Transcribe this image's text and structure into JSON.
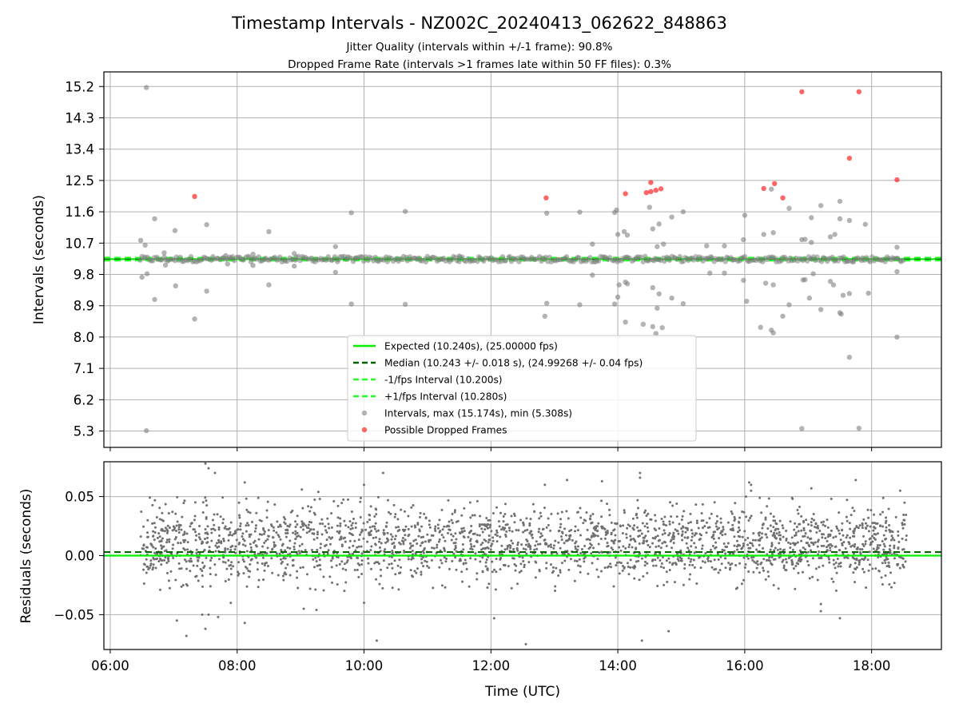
{
  "figure": {
    "title": "Timestamp Intervals - NZ002C_20240413_062622_848863",
    "subtitle_1": "Jitter Quality (intervals within +/-1 frame): 90.8%",
    "subtitle_2": "Dropped Frame Rate (intervals >1 frames late within 50 FF files): 0.3%"
  },
  "colors": {
    "expected": "#00ee00",
    "median": "#006400",
    "limits": "#22ff22",
    "intervals": "#808080",
    "dropped": "#ff0000",
    "residuals": "#707070",
    "grid": "#b0b0b0"
  },
  "chart_data": [
    {
      "type": "scatter",
      "ylabel": "Intervals (seconds)",
      "x_unit": "hours UTC",
      "xlim": [
        5.9,
        19.1
      ],
      "ylim": [
        4.83,
        15.62
      ],
      "yticks": [
        "15.2",
        "14.3",
        "13.4",
        "12.5",
        "11.6",
        "10.7",
        "9.8",
        "8.9",
        "8.0",
        "7.1",
        "6.2",
        "5.3"
      ],
      "xticks": [
        "06:00",
        "08:00",
        "10:00",
        "12:00",
        "14:00",
        "16:00",
        "18:00"
      ],
      "grid": true,
      "legend_position": "lower center",
      "lines": [
        {
          "name": "Expected (10.240s), (25.00000 fps)",
          "y": 10.24,
          "style": "solid",
          "color": "#00ee00"
        },
        {
          "name": "Median (10.243 +/- 0.018 s), (24.99268 +/- 0.04 fps)",
          "y": 10.243,
          "style": "dashed",
          "color": "#006400"
        },
        {
          "name": "-1/fps Interval (10.200s)",
          "y": 10.2,
          "style": "dashed",
          "color": "#22ff22"
        },
        {
          "name": "+1/fps Interval (10.280s)",
          "y": 10.28,
          "style": "dashed",
          "color": "#22ff22"
        }
      ],
      "series": [
        {
          "name": "Intervals, max (15.174s), min (5.308s)",
          "color": "#808080",
          "main_band": {
            "x_range": [
              6.47,
              18.5
            ],
            "y_center": 10.24,
            "y_spread": 0.08,
            "count": 420
          },
          "points": [
            [
              6.57,
              15.17
            ],
            [
              6.57,
              5.31
            ],
            [
              6.48,
              10.78
            ],
            [
              6.55,
              10.64
            ],
            [
              6.5,
              9.72
            ],
            [
              6.58,
              9.82
            ],
            [
              6.7,
              11.4
            ],
            [
              6.7,
              9.08
            ],
            [
              6.85,
              10.42
            ],
            [
              6.87,
              10.07
            ],
            [
              7.02,
              11.06
            ],
            [
              7.03,
              9.47
            ],
            [
              7.33,
              8.52
            ],
            [
              7.52,
              11.23
            ],
            [
              7.52,
              9.32
            ],
            [
              7.82,
              10.34
            ],
            [
              7.85,
              10.1
            ],
            [
              8.25,
              10.38
            ],
            [
              8.25,
              10.06
            ],
            [
              8.5,
              11.03
            ],
            [
              8.5,
              9.5
            ],
            [
              8.9,
              10.4
            ],
            [
              8.9,
              10.04
            ],
            [
              9.8,
              11.57
            ],
            [
              9.8,
              8.95
            ],
            [
              9.55,
              10.6
            ],
            [
              9.55,
              9.86
            ],
            [
              10.65,
              11.61
            ],
            [
              10.65,
              8.94
            ],
            [
              11.5,
              10.33
            ],
            [
              12.88,
              11.56
            ],
            [
              12.88,
              8.97
            ],
            [
              12.85,
              8.6
            ],
            [
              13.4,
              11.59
            ],
            [
              13.4,
              8.93
            ],
            [
              13.6,
              10.67
            ],
            [
              13.6,
              9.78
            ],
            [
              13.95,
              11.58
            ],
            [
              13.98,
              11.65
            ],
            [
              14.0,
              10.95
            ],
            [
              14.02,
              9.5
            ],
            [
              14.0,
              9.15
            ],
            [
              13.95,
              8.95
            ],
            [
              14.1,
              11.03
            ],
            [
              14.15,
              10.93
            ],
            [
              14.12,
              9.58
            ],
            [
              14.15,
              9.53
            ],
            [
              14.12,
              8.43
            ],
            [
              14.5,
              11.73
            ],
            [
              14.55,
              11.11
            ],
            [
              14.62,
              10.6
            ],
            [
              14.65,
              11.25
            ],
            [
              14.72,
              10.67
            ],
            [
              14.55,
              9.42
            ],
            [
              14.65,
              9.24
            ],
            [
              14.62,
              8.83
            ],
            [
              14.4,
              8.37
            ],
            [
              14.55,
              8.3
            ],
            [
              14.7,
              8.27
            ],
            [
              14.6,
              8.1
            ],
            [
              14.85,
              11.45
            ],
            [
              14.85,
              9.12
            ],
            [
              15.03,
              11.6
            ],
            [
              15.03,
              8.96
            ],
            [
              15.4,
              10.62
            ],
            [
              15.45,
              9.84
            ],
            [
              15.68,
              10.62
            ],
            [
              15.68,
              9.84
            ],
            [
              16.0,
              11.5
            ],
            [
              15.98,
              10.8
            ],
            [
              15.98,
              9.63
            ],
            [
              16.03,
              9.03
            ],
            [
              16.3,
              10.95
            ],
            [
              16.33,
              9.55
            ],
            [
              16.25,
              8.28
            ],
            [
              16.42,
              12.25
            ],
            [
              16.45,
              11.0
            ],
            [
              16.45,
              9.5
            ],
            [
              16.42,
              8.2
            ],
            [
              16.45,
              8.12
            ],
            [
              16.6,
              8.6
            ],
            [
              16.7,
              11.7
            ],
            [
              16.7,
              8.93
            ],
            [
              16.9,
              10.8
            ],
            [
              16.95,
              10.81
            ],
            [
              16.92,
              9.64
            ],
            [
              16.95,
              9.65
            ],
            [
              16.9,
              5.37
            ],
            [
              17.05,
              11.43
            ],
            [
              17.05,
              10.72
            ],
            [
              17.08,
              9.82
            ],
            [
              17.02,
              9.12
            ],
            [
              17.2,
              11.78
            ],
            [
              17.2,
              8.79
            ],
            [
              17.35,
              10.88
            ],
            [
              17.42,
              10.95
            ],
            [
              17.35,
              9.6
            ],
            [
              17.4,
              9.5
            ],
            [
              17.5,
              11.9
            ],
            [
              17.5,
              11.4
            ],
            [
              17.5,
              8.7
            ],
            [
              17.52,
              8.66
            ],
            [
              17.55,
              9.2
            ],
            [
              17.65,
              11.35
            ],
            [
              17.65,
              9.25
            ],
            [
              17.65,
              7.42
            ],
            [
              17.8,
              5.38
            ],
            [
              17.9,
              11.24
            ],
            [
              17.95,
              9.26
            ],
            [
              18.4,
              10.58
            ],
            [
              18.4,
              9.88
            ],
            [
              18.4,
              8.0
            ]
          ]
        },
        {
          "name": "Possible Dropped Frames",
          "color": "#ff0000",
          "points": [
            [
              7.33,
              12.04
            ],
            [
              12.87,
              12.0
            ],
            [
              14.12,
              12.12
            ],
            [
              14.45,
              12.15
            ],
            [
              14.52,
              12.18
            ],
            [
              14.52,
              12.44
            ],
            [
              14.6,
              12.22
            ],
            [
              14.68,
              12.26
            ],
            [
              16.3,
              12.27
            ],
            [
              16.47,
              12.41
            ],
            [
              16.6,
              12.0
            ],
            [
              16.9,
              15.05
            ],
            [
              17.65,
              13.14
            ],
            [
              17.8,
              15.05
            ],
            [
              18.4,
              12.52
            ]
          ]
        }
      ]
    },
    {
      "type": "scatter",
      "xlabel": "Time (UTC)",
      "ylabel": "Residuals (seconds)",
      "x_unit": "hours UTC",
      "xlim": [
        5.9,
        19.1
      ],
      "ylim": [
        -0.0795,
        0.0795
      ],
      "yticks": [
        "0.05",
        "0.00",
        "−0.05"
      ],
      "ytick_values": [
        0.05,
        0.0,
        -0.05
      ],
      "xticks": [
        "06:00",
        "08:00",
        "10:00",
        "12:00",
        "14:00",
        "16:00",
        "18:00"
      ],
      "grid": true,
      "lines": [
        {
          "name": "Expected",
          "y": 0.0,
          "style": "solid",
          "color": "#00ee00"
        },
        {
          "name": "Median",
          "y": 0.003,
          "style": "dashed",
          "color": "#006400"
        }
      ],
      "series": [
        {
          "name": "Residuals",
          "color": "#707070",
          "band": {
            "x_range": [
              6.47,
              18.55
            ],
            "y_range": [
              -0.03,
              0.05
            ],
            "count": 2400
          },
          "outliers": [
            [
              7.5,
              0.078
            ],
            [
              7.65,
              0.07
            ],
            [
              7.55,
              0.074
            ],
            [
              8.12,
              0.062
            ],
            [
              9.02,
              0.056
            ],
            [
              9.28,
              0.054
            ],
            [
              10.0,
              0.06
            ],
            [
              10.3,
              0.07
            ],
            [
              12.85,
              0.06
            ],
            [
              13.2,
              0.064
            ],
            [
              13.75,
              0.063
            ],
            [
              14.35,
              0.07
            ],
            [
              14.35,
              0.066
            ],
            [
              16.1,
              0.055
            ],
            [
              16.1,
              0.06
            ],
            [
              16.02,
              0.05
            ],
            [
              16.07,
              0.062
            ],
            [
              17.05,
              0.057
            ],
            [
              17.75,
              0.064
            ],
            [
              18.45,
              0.055
            ],
            [
              7.05,
              -0.055
            ],
            [
              7.2,
              -0.068
            ],
            [
              7.45,
              -0.05
            ],
            [
              7.55,
              -0.05
            ],
            [
              7.7,
              -0.052
            ],
            [
              7.5,
              -0.062
            ],
            [
              8.12,
              -0.057
            ],
            [
              9.25,
              -0.046
            ],
            [
              9.05,
              -0.045
            ],
            [
              10.2,
              -0.072
            ],
            [
              10.0,
              -0.04
            ],
            [
              12.05,
              -0.053
            ],
            [
              12.55,
              -0.075
            ],
            [
              14.38,
              -0.072
            ],
            [
              14.8,
              -0.064
            ],
            [
              17.2,
              -0.047
            ],
            [
              17.2,
              -0.041
            ],
            [
              17.5,
              -0.053
            ],
            [
              7.9,
              -0.04
            ]
          ]
        }
      ]
    }
  ]
}
